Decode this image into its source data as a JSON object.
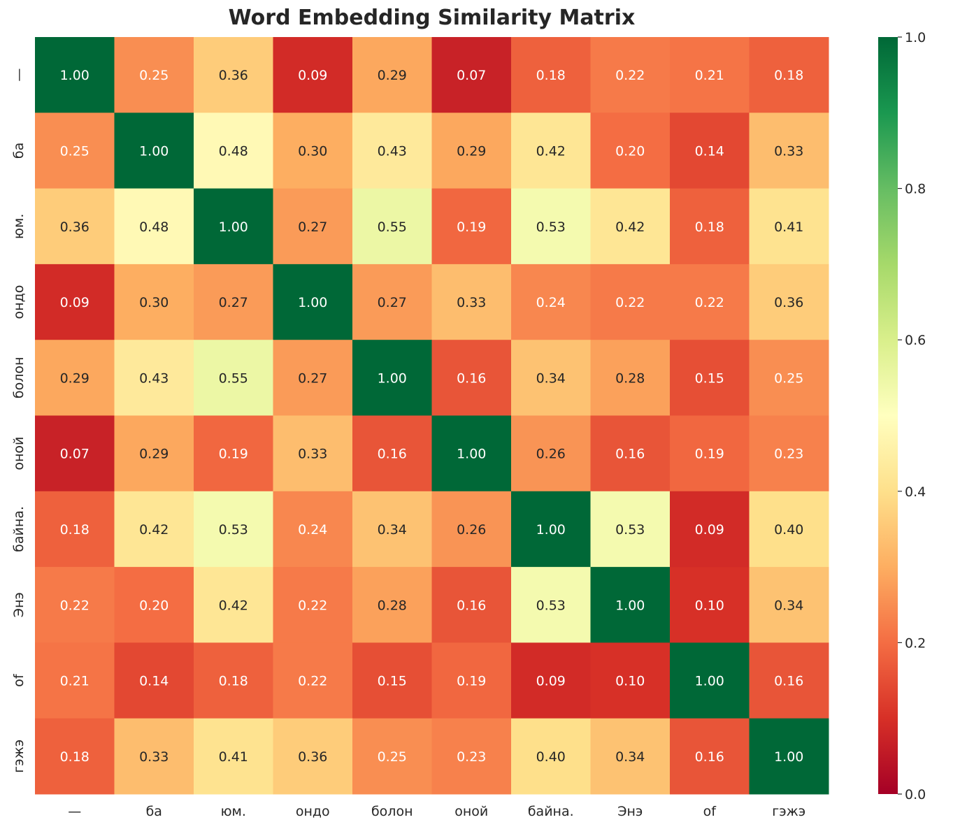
{
  "chart_data": {
    "type": "heatmap",
    "title": "Word Embedding Similarity Matrix",
    "colormap": "RdYlGn",
    "vmin": 0.0,
    "vmax": 1.0,
    "colorbar_ticks": [
      "0.0",
      "0.2",
      "0.4",
      "0.6",
      "0.8",
      "1.0"
    ],
    "x_labels": [
      "—",
      "ба",
      "юм.",
      "ондо",
      "болон",
      "оной",
      "байна.",
      "Энэ",
      "of",
      "гэжэ"
    ],
    "y_labels": [
      "—",
      "ба",
      "юм.",
      "ондо",
      "болон",
      "оной",
      "байна.",
      "Энэ",
      "of",
      "гэжэ"
    ],
    "values": [
      [
        1.0,
        0.25,
        0.36,
        0.09,
        0.29,
        0.07,
        0.18,
        0.22,
        0.21,
        0.18
      ],
      [
        0.25,
        1.0,
        0.48,
        0.3,
        0.43,
        0.29,
        0.42,
        0.2,
        0.14,
        0.33
      ],
      [
        0.36,
        0.48,
        1.0,
        0.27,
        0.55,
        0.19,
        0.53,
        0.42,
        0.18,
        0.41
      ],
      [
        0.09,
        0.3,
        0.27,
        1.0,
        0.27,
        0.33,
        0.24,
        0.22,
        0.22,
        0.36
      ],
      [
        0.29,
        0.43,
        0.55,
        0.27,
        1.0,
        0.16,
        0.34,
        0.28,
        0.15,
        0.25
      ],
      [
        0.07,
        0.29,
        0.19,
        0.33,
        0.16,
        1.0,
        0.26,
        0.16,
        0.19,
        0.23
      ],
      [
        0.18,
        0.42,
        0.53,
        0.24,
        0.34,
        0.26,
        1.0,
        0.53,
        0.09,
        0.4
      ],
      [
        0.22,
        0.2,
        0.42,
        0.22,
        0.28,
        0.16,
        0.53,
        1.0,
        0.1,
        0.34
      ],
      [
        0.21,
        0.14,
        0.18,
        0.22,
        0.15,
        0.19,
        0.09,
        0.1,
        1.0,
        0.16
      ],
      [
        0.18,
        0.33,
        0.41,
        0.36,
        0.25,
        0.23,
        0.4,
        0.34,
        0.16,
        1.0
      ]
    ]
  }
}
